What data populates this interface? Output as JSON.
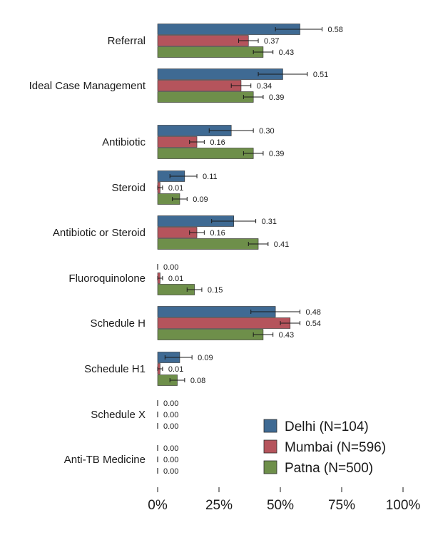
{
  "chart_data": {
    "type": "bar",
    "orientation": "horizontal",
    "categories": [
      "Referral",
      "Ideal Case Management",
      "Antibiotic",
      "Steroid",
      "Antibiotic or Steroid",
      "Fluoroquinolone",
      "Schedule H",
      "Schedule H1",
      "Schedule X",
      "Anti-TB Medicine"
    ],
    "series": [
      {
        "name": "Delhi (N=104)",
        "color": "#3f6a93",
        "values": [
          0.58,
          0.51,
          0.3,
          0.11,
          0.31,
          0.0,
          0.48,
          0.09,
          0.0,
          0.0
        ],
        "ci": [
          [
            0.48,
            0.67
          ],
          [
            0.41,
            0.61
          ],
          [
            0.21,
            0.39
          ],
          [
            0.05,
            0.16
          ],
          [
            0.22,
            0.4
          ],
          [
            0,
            0
          ],
          [
            0.38,
            0.58
          ],
          [
            0.03,
            0.14
          ],
          [
            0,
            0
          ],
          [
            0,
            0
          ]
        ]
      },
      {
        "name": "Mumbai (N=596)",
        "color": "#b5545c",
        "values": [
          0.37,
          0.34,
          0.16,
          0.01,
          0.16,
          0.01,
          0.54,
          0.01,
          0.0,
          0.0
        ],
        "ci": [
          [
            0.33,
            0.41
          ],
          [
            0.3,
            0.38
          ],
          [
            0.13,
            0.19
          ],
          [
            0.0,
            0.02
          ],
          [
            0.13,
            0.19
          ],
          [
            0.0,
            0.02
          ],
          [
            0.5,
            0.58
          ],
          [
            0.0,
            0.02
          ],
          [
            0,
            0
          ],
          [
            0,
            0
          ]
        ]
      },
      {
        "name": "Patna (N=500)",
        "color": "#6e8f4a",
        "values": [
          0.43,
          0.39,
          0.39,
          0.09,
          0.41,
          0.15,
          0.43,
          0.08,
          0.0,
          0.0
        ],
        "ci": [
          [
            0.39,
            0.47
          ],
          [
            0.35,
            0.43
          ],
          [
            0.35,
            0.43
          ],
          [
            0.06,
            0.12
          ],
          [
            0.37,
            0.45
          ],
          [
            0.12,
            0.18
          ],
          [
            0.39,
            0.47
          ],
          [
            0.05,
            0.11
          ],
          [
            0,
            0
          ],
          [
            0,
            0
          ]
        ]
      }
    ],
    "value_labels": [
      [
        "0.58",
        "0.51",
        "0.30",
        "0.11",
        "0.31",
        "0.00",
        "0.48",
        "0.09",
        "0.00",
        "0.00"
      ],
      [
        "0.37",
        "0.34",
        "0.16",
        "0.01",
        "0.16",
        "0.01",
        "0.54",
        "0.01",
        "0.00",
        "0.00"
      ],
      [
        "0.43",
        "0.39",
        "0.39",
        "0.09",
        "0.41",
        "0.15",
        "0.43",
        "0.08",
        "0.00",
        "0.00"
      ]
    ],
    "x_ticks": [
      {
        "value": 0,
        "label": "0%"
      },
      {
        "value": 0.25,
        "label": "25%"
      },
      {
        "value": 0.5,
        "label": "50%"
      },
      {
        "value": 0.75,
        "label": "75%"
      },
      {
        "value": 1,
        "label": "100%"
      }
    ],
    "xlim": [
      0,
      1
    ],
    "title": "",
    "xlabel": "",
    "ylabel": "",
    "grid": false,
    "error_bars": true,
    "legend_position": "bottom-right"
  }
}
